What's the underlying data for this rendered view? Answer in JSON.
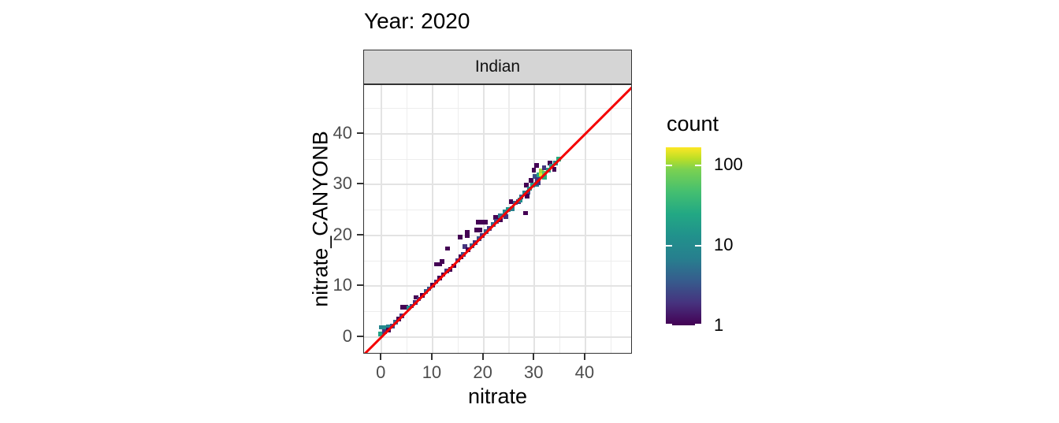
{
  "chart_data": {
    "type": "heatmap",
    "subtype": "geom_bin2d",
    "title": "Year: 2020",
    "facet_label": "Indian",
    "xlabel": "nitrate",
    "ylabel": "nitrate_CANYONB",
    "x_axis": {
      "range": [
        -3.45,
        49.3
      ],
      "major_ticks": [
        0,
        10,
        20,
        30,
        40
      ],
      "minor_ticks": [
        5,
        15,
        25,
        35,
        45
      ]
    },
    "y_axis": {
      "range": [
        -3.45,
        49.6
      ],
      "major_ticks": [
        0,
        10,
        20,
        30,
        40
      ],
      "minor_ticks": [
        5,
        15,
        25,
        35,
        45
      ]
    },
    "grid": true,
    "reference_line": {
      "type": "identity y=x",
      "color": "#f40000",
      "width": 3
    },
    "bin_size": 0.9,
    "color_scale": {
      "name": "viridis",
      "trans": "log10",
      "domain": [
        1,
        165
      ],
      "legend_title": "count",
      "legend_ticks": [
        100,
        10,
        1
      ],
      "legend_position": "right",
      "viridis_stops": [
        [
          0,
          "#440154"
        ],
        [
          0.125,
          "#46327e"
        ],
        [
          0.25,
          "#365c8d"
        ],
        [
          0.375,
          "#277f8e"
        ],
        [
          0.5,
          "#21918c"
        ],
        [
          0.625,
          "#22a884"
        ],
        [
          0.75,
          "#44bf70"
        ],
        [
          0.875,
          "#7ad151"
        ],
        [
          0.9375,
          "#bddf26"
        ],
        [
          1,
          "#fde725"
        ]
      ]
    },
    "tiles": [
      [
        -0.2,
        0.6,
        20
      ],
      [
        0.0,
        1.9,
        8
      ],
      [
        0.7,
        1.9,
        11
      ],
      [
        1.4,
        2.0,
        7
      ],
      [
        2.1,
        2.1,
        3
      ],
      [
        0.6,
        1.0,
        2
      ],
      [
        1.3,
        1.3,
        1
      ],
      [
        2.7,
        2.9,
        5
      ],
      [
        3.4,
        3.5,
        1
      ],
      [
        4.0,
        4.2,
        2
      ],
      [
        4.1,
        5.9,
        1
      ],
      [
        4.8,
        5.9,
        1
      ],
      [
        5.3,
        5.7,
        12
      ],
      [
        5.9,
        6.1,
        3
      ],
      [
        6.6,
        6.8,
        2
      ],
      [
        6.8,
        7.8,
        1
      ],
      [
        7.3,
        7.5,
        2
      ],
      [
        8.0,
        8.2,
        1
      ],
      [
        8.7,
        8.9,
        4
      ],
      [
        9.3,
        9.5,
        3
      ],
      [
        10.0,
        10.2,
        1
      ],
      [
        10.7,
        10.9,
        2
      ],
      [
        10.7,
        14.3,
        1
      ],
      [
        11.4,
        14.3,
        1
      ],
      [
        11.9,
        14.9,
        1
      ],
      [
        13.0,
        17.4,
        1
      ],
      [
        11.4,
        11.6,
        1
      ],
      [
        12.1,
        12.3,
        1
      ],
      [
        12.8,
        13.0,
        2
      ],
      [
        13.5,
        13.3,
        1
      ],
      [
        14.2,
        14.0,
        1
      ],
      [
        14.9,
        15.1,
        2
      ],
      [
        15.6,
        15.8,
        1
      ],
      [
        15.4,
        19.6,
        1
      ],
      [
        16.8,
        20.6,
        1
      ],
      [
        16.8,
        19.9,
        1
      ],
      [
        16.1,
        16.3,
        3
      ],
      [
        16.4,
        17.8,
        2
      ],
      [
        17.0,
        17.2,
        1
      ],
      [
        17.7,
        17.9,
        4
      ],
      [
        18.4,
        18.6,
        2
      ],
      [
        18.6,
        21.1,
        1
      ],
      [
        19.3,
        21.1,
        1
      ],
      [
        19.0,
        22.6,
        1
      ],
      [
        19.7,
        22.6,
        1
      ],
      [
        20.4,
        22.6,
        1
      ],
      [
        19.1,
        19.3,
        3
      ],
      [
        19.8,
        20.0,
        2
      ],
      [
        20.5,
        20.7,
        4
      ],
      [
        21.2,
        21.4,
        2
      ],
      [
        21.9,
        22.1,
        5
      ],
      [
        22.4,
        23.5,
        1
      ],
      [
        22.6,
        22.8,
        3
      ],
      [
        23.3,
        23.1,
        1
      ],
      [
        23.3,
        23.8,
        6
      ],
      [
        24.2,
        24.6,
        9
      ],
      [
        24.4,
        23.7,
        2
      ],
      [
        24.9,
        25.1,
        14
      ],
      [
        25.6,
        25.3,
        7
      ],
      [
        25.4,
        26.6,
        1
      ],
      [
        26.2,
        26.4,
        4
      ],
      [
        26.9,
        26.7,
        2
      ],
      [
        27.2,
        27.0,
        12
      ],
      [
        28.3,
        24.4,
        1
      ],
      [
        27.4,
        27.6,
        5
      ],
      [
        28.1,
        28.3,
        8
      ],
      [
        28.8,
        28.5,
        3
      ],
      [
        28.6,
        27.7,
        1
      ],
      [
        28.4,
        29.9,
        1
      ],
      [
        29.0,
        29.2,
        12
      ],
      [
        29.7,
        29.9,
        18
      ],
      [
        30.4,
        30.1,
        6
      ],
      [
        29.4,
        30.8,
        1
      ],
      [
        29.9,
        32.9,
        1
      ],
      [
        30.4,
        33.8,
        1
      ],
      [
        30.1,
        31.6,
        3
      ],
      [
        30.6,
        31.0,
        2
      ],
      [
        30.7,
        30.4,
        2
      ],
      [
        30.8,
        31.9,
        25
      ],
      [
        31.3,
        32.0,
        150
      ],
      [
        31.3,
        32.7,
        110
      ],
      [
        32.0,
        32.2,
        60
      ],
      [
        32.0,
        31.5,
        30
      ],
      [
        31.9,
        33.3,
        2
      ],
      [
        33.0,
        34.2,
        1
      ],
      [
        32.7,
        32.9,
        20
      ],
      [
        33.4,
        33.6,
        15
      ],
      [
        33.9,
        33.0,
        1
      ],
      [
        34.1,
        34.3,
        12
      ],
      [
        34.8,
        35.0,
        28
      ]
    ]
  },
  "colors": {
    "grid_major": "#e3e3e3",
    "grid_minor": "#ededed",
    "strip_bg": "#d5d5d5",
    "panel_border": "#333333",
    "tick_mark": "#333333",
    "tick_label": "#4d4d4d",
    "text": "#000000",
    "reference_line": "#f40000"
  }
}
